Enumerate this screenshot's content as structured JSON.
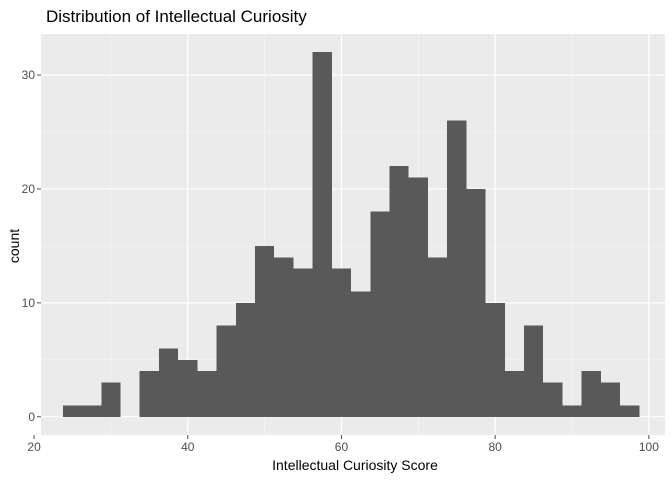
{
  "chart_data": {
    "type": "bar",
    "title": "Distribution of Intellectual Curiosity",
    "xlabel": "Intellectual Curiosity Score",
    "ylabel": "count",
    "xlim": [
      20.9,
      102.1
    ],
    "ylim": [
      -1.6,
      33.6
    ],
    "x_ticks": [
      20,
      40,
      60,
      80,
      100
    ],
    "y_ticks": [
      0,
      10,
      20,
      30
    ],
    "bin_width": 2.5,
    "bins": [
      {
        "start": 23.75,
        "count": 1
      },
      {
        "start": 26.25,
        "count": 1
      },
      {
        "start": 28.75,
        "count": 3
      },
      {
        "start": 31.25,
        "count": 0
      },
      {
        "start": 33.75,
        "count": 4
      },
      {
        "start": 36.25,
        "count": 6
      },
      {
        "start": 38.75,
        "count": 5
      },
      {
        "start": 41.25,
        "count": 4
      },
      {
        "start": 43.75,
        "count": 8
      },
      {
        "start": 46.25,
        "count": 10
      },
      {
        "start": 48.75,
        "count": 15
      },
      {
        "start": 51.25,
        "count": 14
      },
      {
        "start": 53.75,
        "count": 13
      },
      {
        "start": 56.25,
        "count": 32
      },
      {
        "start": 58.75,
        "count": 13
      },
      {
        "start": 61.25,
        "count": 11
      },
      {
        "start": 63.75,
        "count": 18
      },
      {
        "start": 66.25,
        "count": 22
      },
      {
        "start": 68.75,
        "count": 21
      },
      {
        "start": 71.25,
        "count": 14
      },
      {
        "start": 73.75,
        "count": 26
      },
      {
        "start": 76.25,
        "count": 20
      },
      {
        "start": 78.75,
        "count": 10
      },
      {
        "start": 81.25,
        "count": 4
      },
      {
        "start": 83.75,
        "count": 8
      },
      {
        "start": 86.25,
        "count": 3
      },
      {
        "start": 88.75,
        "count": 1
      },
      {
        "start": 91.25,
        "count": 4
      },
      {
        "start": 93.75,
        "count": 3
      },
      {
        "start": 96.25,
        "count": 1
      }
    ],
    "colors": {
      "bar": "#595959",
      "panel": "#ebebeb",
      "grid_major": "#ffffff",
      "grid_minor": "#f5f5f5",
      "tick": "#4d4d4d"
    },
    "grid": true,
    "legend": "none"
  }
}
